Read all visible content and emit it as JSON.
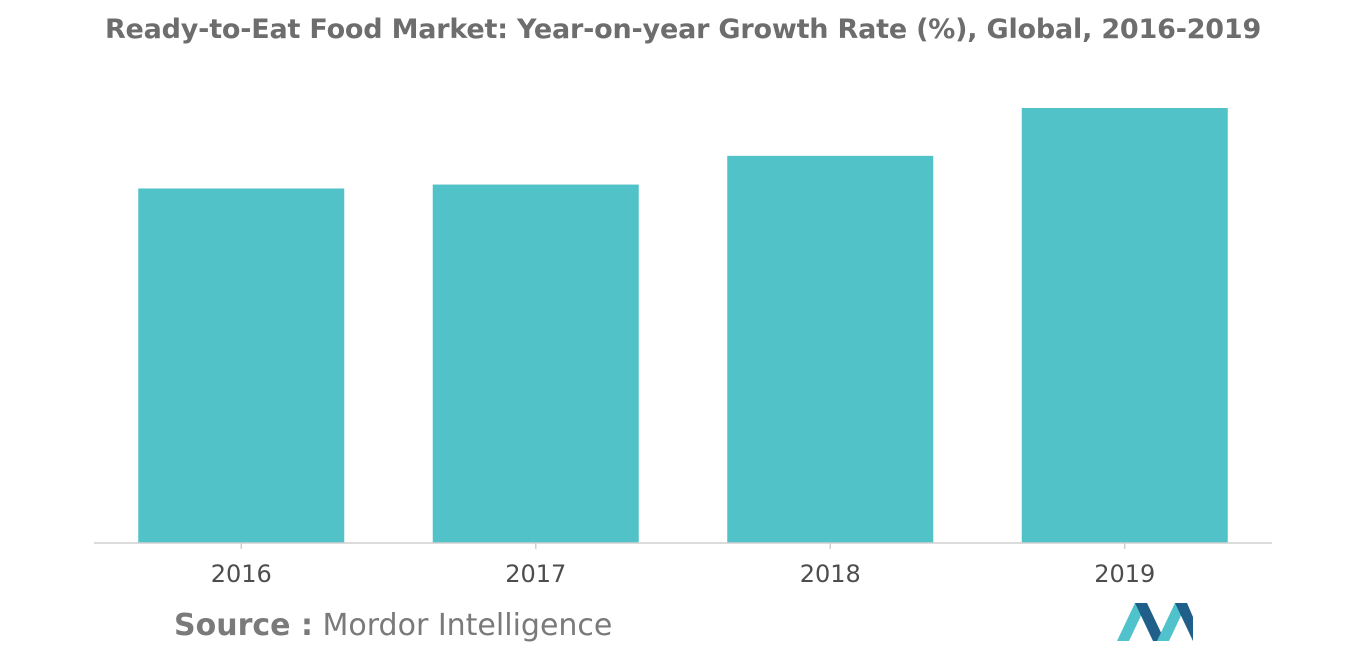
{
  "title": "Ready-to-Eat Food Market: Year-on-year Growth Rate (%), Global, 2016-2019",
  "source": {
    "label": "Source :",
    "text": "Mordor Intelligence"
  },
  "logo": {
    "icon": "mordor-intelligence-logo-icon",
    "colors": [
      "#1f5f8a",
      "#4fc2cb"
    ]
  },
  "chart_data": {
    "type": "bar",
    "title": "Ready-to-Eat Food Market: Year-on-year Growth Rate (%), Global, 2016-2019",
    "xlabel": "",
    "ylabel": "",
    "categories": [
      "2016",
      "2017",
      "2018",
      "2019"
    ],
    "values": [
      8.15,
      8.24,
      8.9,
      10.0
    ],
    "ylim": [
      0,
      10.0
    ],
    "grid": false,
    "legend": "none",
    "bar_color": "#50c2c8",
    "axis_color": "#cfcfcf"
  }
}
